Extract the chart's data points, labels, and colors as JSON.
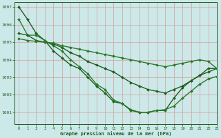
{
  "xlabel": "Graphe pression niveau de la mer (hPa)",
  "bg_color": "#cce8e8",
  "grid_color": "#d4a0a0",
  "line_color": "#1e5c1e",
  "xlim": [
    -0.5,
    23
  ],
  "ylim": [
    1000.3,
    1007.3
  ],
  "yticks": [
    1001,
    1002,
    1003,
    1004,
    1005,
    1006,
    1007
  ],
  "xticks": [
    0,
    1,
    2,
    3,
    4,
    5,
    6,
    7,
    8,
    9,
    10,
    11,
    12,
    13,
    14,
    15,
    16,
    17,
    18,
    19,
    20,
    21,
    22,
    23
  ],
  "series": [
    {
      "x": [
        0,
        1,
        2,
        3,
        4,
        5,
        6,
        7,
        8,
        9,
        10,
        11,
        12,
        13,
        14,
        15,
        16,
        17,
        18,
        19,
        20,
        21,
        22,
        23
      ],
      "y": [
        1007.0,
        1006.3,
        1005.5,
        1005.1,
        1004.5,
        1004.1,
        1003.7,
        1003.5,
        1003.0,
        1002.5,
        1002.1,
        1001.6,
        1001.5,
        1001.1,
        1001.0,
        1001.0,
        1001.1,
        1001.1,
        1001.8,
        1002.4,
        1002.8,
        1003.1,
        1003.5,
        1003.5
      ],
      "color": "#1e5c1e",
      "lw": 1.0
    },
    {
      "x": [
        0,
        1,
        2,
        3,
        4,
        5,
        6,
        7,
        8,
        9,
        10,
        11,
        12,
        13,
        14,
        15,
        16,
        17,
        18,
        19,
        20,
        21,
        22,
        23
      ],
      "y": [
        1006.3,
        1005.4,
        1005.4,
        1005.1,
        1004.8,
        1004.5,
        1004.0,
        1003.6,
        1003.2,
        1002.6,
        1002.3,
        1001.7,
        1001.5,
        1001.15,
        1001.0,
        1001.0,
        1001.1,
        1001.15,
        1001.35,
        1001.8,
        1002.2,
        1002.6,
        1002.9,
        1003.05
      ],
      "color": "#2a7a2a",
      "lw": 1.0
    },
    {
      "x": [
        0,
        1,
        2,
        3,
        4,
        5,
        6,
        7,
        8,
        9,
        10,
        11,
        12,
        13,
        14,
        15,
        16,
        17,
        18,
        19,
        20,
        21,
        22,
        23
      ],
      "y": [
        1005.5,
        1005.4,
        1005.1,
        1005.0,
        1004.9,
        1004.7,
        1004.4,
        1004.2,
        1003.9,
        1003.7,
        1003.5,
        1003.3,
        1003.0,
        1002.7,
        1002.5,
        1002.3,
        1002.2,
        1002.1,
        1002.3,
        1002.5,
        1002.8,
        1003.1,
        1003.3,
        1003.5
      ],
      "color": "#1e5c1e",
      "lw": 1.0
    },
    {
      "x": [
        0,
        1,
        2,
        3,
        4,
        5,
        6,
        7,
        8,
        9,
        10,
        11,
        12,
        13,
        14,
        15,
        16,
        17,
        18,
        19,
        20,
        21,
        22,
        23
      ],
      "y": [
        1005.2,
        1005.1,
        1005.05,
        1005.0,
        1004.95,
        1004.8,
        1004.7,
        1004.6,
        1004.5,
        1004.4,
        1004.3,
        1004.2,
        1004.1,
        1004.0,
        1003.9,
        1003.8,
        1003.7,
        1003.6,
        1003.7,
        1003.8,
        1003.9,
        1004.0,
        1003.9,
        1003.5
      ],
      "color": "#2a7a2a",
      "lw": 1.0
    }
  ]
}
